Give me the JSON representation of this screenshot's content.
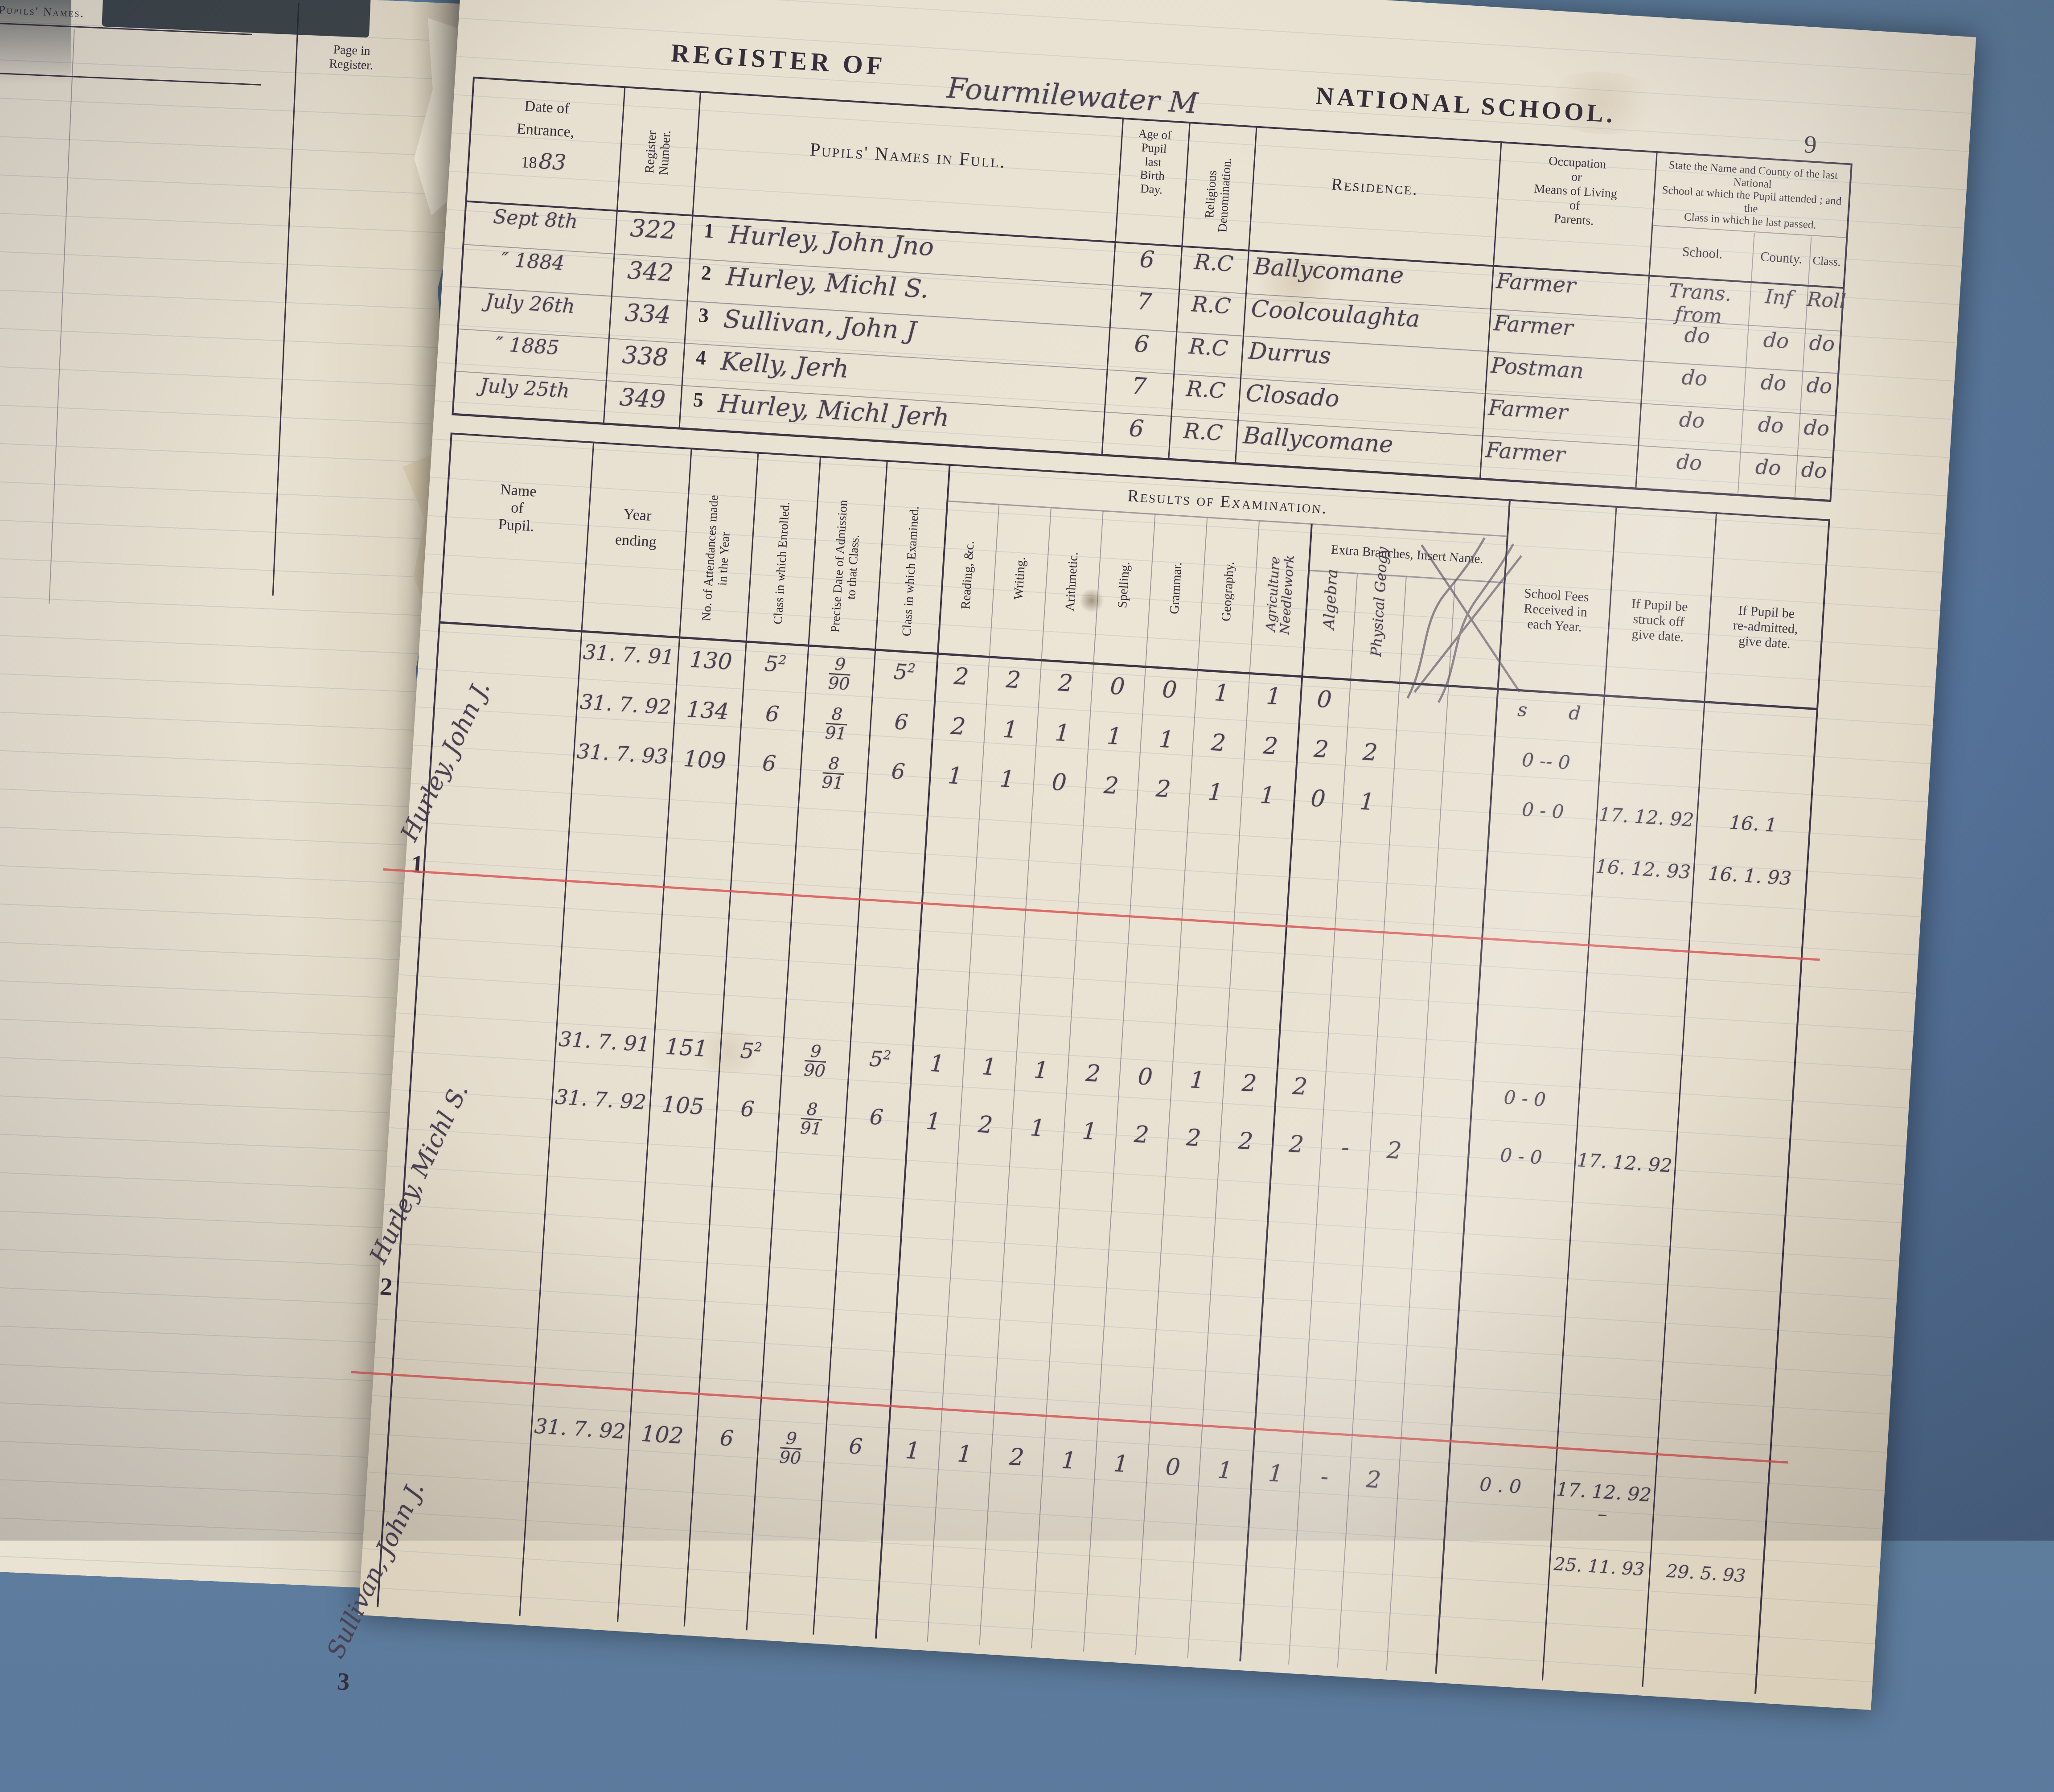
{
  "photo": {
    "background": "#56749b",
    "paper": "#e7dfd0",
    "ink_printed": "#352e3b",
    "ink_written": "#4b4153",
    "red_line": "#d95050"
  },
  "page_number": "9",
  "left_page": {
    "pupils_names": "Pupils' Names.",
    "page_in_register": "Page in\nRegister."
  },
  "title": {
    "register_of": "REGISTER OF",
    "school_written": "Fourmilewater M",
    "national_school": "NATIONAL SCHOOL."
  },
  "admissions": {
    "date_line1": "Date of",
    "date_line2": "Entrance,",
    "year_printed": "18",
    "year_written": "83",
    "register_number": "Register\nNumber.",
    "names_header": "Pupils' Names in Full.",
    "age_header": "Age of\nPupil\nlast\nBirth\nDay.",
    "religion_header": "Religious Denomination.",
    "residence_header": "Residence.",
    "occupation_header": "Occupation\nor\nMeans of Living\nof\nParents.",
    "last_school_header": "State the Name and County of the last National\nSchool at which the Pupil attended ; and the\nClass in which he last passed.",
    "school_sub": "School.",
    "county_sub": "County.",
    "class_sub": "Class.",
    "rows": [
      {
        "date": "Sept 8th",
        "reg": "322",
        "no": "1",
        "name": "Hurley, John Jno",
        "age": "6",
        "rel": "R.C",
        "res": "Ballycomane",
        "occ": "Farmer",
        "school": "Trans. from",
        "county": "Inf",
        "cls": "Roll"
      },
      {
        "date": "″  1884",
        "reg": "342",
        "no": "2",
        "name": "Hurley, Michl S.",
        "age": "7",
        "rel": "R.C",
        "res": "Coolcoulaghta",
        "occ": "Farmer",
        "school": "do",
        "county": "do",
        "cls": "do"
      },
      {
        "date": "July 26th",
        "reg": "334",
        "no": "3",
        "name": "Sullivan, John J",
        "age": "6",
        "rel": "R.C",
        "res": "Durrus",
        "occ": "Postman",
        "school": "do",
        "county": "do",
        "cls": "do"
      },
      {
        "date": "″  1885",
        "reg": "338",
        "no": "4",
        "name": "Kelly, Jerh",
        "age": "7",
        "rel": "R.C",
        "res": "Closado",
        "occ": "Farmer",
        "school": "do",
        "county": "do",
        "cls": "do"
      },
      {
        "date": "July 25th",
        "reg": "349",
        "no": "5",
        "name": "Hurley, Michl Jerh",
        "age": "6",
        "rel": "R.C",
        "res": "Ballycomane",
        "occ": "Farmer",
        "school": "do",
        "county": "do",
        "cls": "do"
      }
    ]
  },
  "results": {
    "name_header": "Name\nof\nPupil.",
    "year_header": "Year\nending",
    "attend_header": "No. of Attendances made\nin the Year",
    "enrolled_header": "Class in which Enrolled.",
    "admission_header": "Precise Date of Admission\nto that Class.",
    "examined_header": "Class in which Examined.",
    "group_header": "Results of Examination.",
    "subjects": [
      "Reading, &c.",
      "Writing.",
      "Arithmetic.",
      "Spelling.",
      "Grammar.",
      "Geography.",
      "Agriculture\nNeedlework"
    ],
    "extra_header": "Extra Branches, Insert Name.",
    "extra_labels": [
      "Algebra",
      "Physical Geogy"
    ],
    "fees_header": "School Fees\nReceived in\neach Year.",
    "struck_header": "If Pupil be\nstruck off\ngive date.",
    "readmit_header": "If Pupil be\nre-admitted,\ngive date.",
    "pupils": [
      {
        "number": "1",
        "name": "Hurley, John J.",
        "rows": [
          {
            "year": "31. 7. 91",
            "att": "130",
            "enr": "5",
            "enr_sup": "2",
            "adm_n": "9",
            "adm_d": "90",
            "exm": "5",
            "exm_sup": "2",
            "marks": [
              "2",
              "2",
              "2",
              "0",
              "0",
              "1",
              "1",
              "0",
              "",
              "",
              ""
            ],
            "fees": "s       d",
            "struck": "",
            "readm": ""
          },
          {
            "year": "31. 7. 92",
            "att": "134",
            "enr": "6",
            "enr_sup": "",
            "adm_n": "8",
            "adm_d": "91",
            "exm": "6",
            "exm_sup": "",
            "marks": [
              "2",
              "1",
              "1",
              "1",
              "1",
              "2",
              "2",
              "2",
              "2",
              "",
              ""
            ],
            "fees": "0 -- 0",
            "struck": "",
            "readm": ""
          },
          {
            "year": "31. 7. 93",
            "att": "109",
            "enr": "6",
            "enr_sup": "",
            "adm_n": "8",
            "adm_d": "91",
            "exm": "6",
            "exm_sup": "",
            "marks": [
              "1",
              "1",
              "0",
              "2",
              "2",
              "1",
              "1",
              "0",
              "1",
              "",
              ""
            ],
            "fees": "0 - 0",
            "struck": "17. 12. 92",
            "readm": "16. 1"
          },
          {
            "year": "",
            "att": "",
            "enr": "",
            "enr_sup": "",
            "adm_n": "",
            "adm_d": "",
            "exm": "",
            "exm_sup": "",
            "marks": [
              "",
              "",
              "",
              "",
              "",
              "",
              "",
              "",
              "",
              "",
              ""
            ],
            "fees": "",
            "struck": "16. 12. 93",
            "readm": "16. 1. 93"
          }
        ]
      },
      {
        "number": "2",
        "name": "Hurley, Michl S.",
        "rows": [
          {
            "year": "31. 7. 91",
            "att": "151",
            "enr": "5",
            "enr_sup": "2",
            "adm_n": "9",
            "adm_d": "90",
            "exm": "5",
            "exm_sup": "2",
            "marks": [
              "1",
              "1",
              "1",
              "2",
              "0",
              "1",
              "2",
              "2",
              "",
              "",
              ""
            ],
            "fees": "0 - 0",
            "struck": "",
            "readm": ""
          },
          {
            "year": "31. 7. 92",
            "att": "105",
            "enr": "6",
            "enr_sup": "",
            "adm_n": "8",
            "adm_d": "91",
            "exm": "6",
            "exm_sup": "",
            "marks": [
              "1",
              "2",
              "1",
              "1",
              "2",
              "2",
              "2",
              "2",
              "-",
              "2",
              ""
            ],
            "fees": "0 - 0",
            "struck": "17. 12. 92",
            "readm": ""
          }
        ]
      },
      {
        "number": "3",
        "name": "Sullivan, John J.",
        "rows": [
          {
            "year": "31. 7. 92",
            "att": "102",
            "enr": "6",
            "enr_sup": "",
            "adm_n": "9",
            "adm_d": "90",
            "exm": "6",
            "exm_sup": "",
            "marks": [
              "1",
              "1",
              "2",
              "1",
              "1",
              "0",
              "1",
              "1",
              "-",
              "2",
              ""
            ],
            "fees": "0 . 0",
            "struck": "17. 12. 92 –",
            "readm": ""
          },
          {
            "year": "",
            "att": "",
            "enr": "",
            "enr_sup": "",
            "adm_n": "",
            "adm_d": "",
            "exm": "",
            "exm_sup": "",
            "marks": [
              "",
              "",
              "",
              "",
              "",
              "",
              "",
              "",
              "",
              "",
              ""
            ],
            "fees": "",
            "struck": "25. 11. 93",
            "readm": "29. 5. 93"
          }
        ]
      }
    ]
  }
}
